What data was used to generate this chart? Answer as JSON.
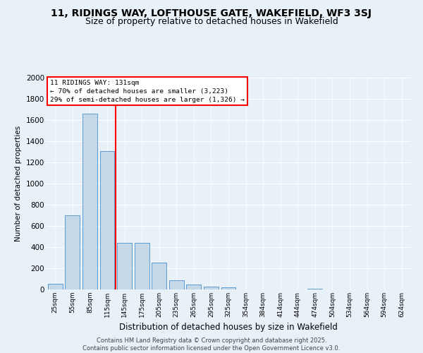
{
  "title": "11, RIDINGS WAY, LOFTHOUSE GATE, WAKEFIELD, WF3 3SJ",
  "subtitle": "Size of property relative to detached houses in Wakefield",
  "xlabel": "Distribution of detached houses by size in Wakefield",
  "ylabel": "Number of detached properties",
  "categories": [
    "25sqm",
    "55sqm",
    "85sqm",
    "115sqm",
    "145sqm",
    "175sqm",
    "205sqm",
    "235sqm",
    "265sqm",
    "295sqm",
    "325sqm",
    "354sqm",
    "384sqm",
    "414sqm",
    "444sqm",
    "474sqm",
    "504sqm",
    "534sqm",
    "564sqm",
    "594sqm",
    "624sqm"
  ],
  "values": [
    55,
    700,
    1660,
    1310,
    440,
    440,
    255,
    85,
    47,
    30,
    20,
    0,
    0,
    0,
    0,
    5,
    0,
    0,
    0,
    0,
    0
  ],
  "bar_color": "#c5d8e8",
  "bar_edge_color": "#5b9bd5",
  "vline_x_index": 3,
  "vline_color": "red",
  "annotation_title": "11 RIDINGS WAY: 131sqm",
  "annotation_line1": "← 70% of detached houses are smaller (3,223)",
  "annotation_line2": "29% of semi-detached houses are larger (1,326) →",
  "ylim": [
    0,
    2000
  ],
  "yticks": [
    0,
    200,
    400,
    600,
    800,
    1000,
    1200,
    1400,
    1600,
    1800,
    2000
  ],
  "footer_line1": "Contains HM Land Registry data © Crown copyright and database right 2025.",
  "footer_line2": "Contains public sector information licensed under the Open Government Licence v3.0.",
  "bg_color": "#e8f0f8",
  "plot_bg_color": "#e8f0f8",
  "title_fontsize": 10,
  "subtitle_fontsize": 9,
  "grid_color": "#ffffff"
}
